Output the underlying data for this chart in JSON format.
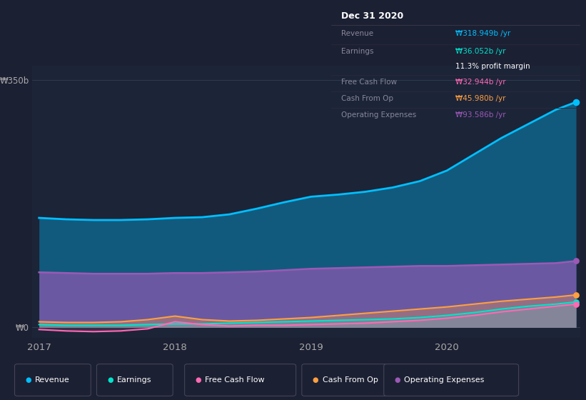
{
  "background_color": "#1c2033",
  "plot_bg_color": "#1c2438",
  "title": "Dec 31 2020",
  "x_years": [
    2017.0,
    2017.2,
    2017.4,
    2017.6,
    2017.8,
    2018.0,
    2018.2,
    2018.4,
    2018.6,
    2018.8,
    2019.0,
    2019.2,
    2019.4,
    2019.6,
    2019.8,
    2020.0,
    2020.2,
    2020.4,
    2020.6,
    2020.8,
    2020.95
  ],
  "revenue": [
    155,
    153,
    152,
    152,
    153,
    155,
    156,
    160,
    168,
    177,
    185,
    188,
    192,
    198,
    207,
    222,
    245,
    268,
    288,
    308,
    319
  ],
  "earnings": [
    4,
    3,
    3,
    3,
    4,
    5,
    5,
    6,
    7,
    8,
    9,
    10,
    11,
    12,
    14,
    17,
    21,
    26,
    30,
    33,
    36
  ],
  "free_cash_flow": [
    -3,
    -5,
    -6,
    -5,
    -2,
    8,
    4,
    2,
    3,
    3,
    4,
    5,
    6,
    8,
    10,
    13,
    17,
    22,
    26,
    30,
    33
  ],
  "cash_from_op": [
    8,
    7,
    7,
    8,
    11,
    16,
    11,
    9,
    10,
    12,
    14,
    17,
    20,
    23,
    26,
    29,
    33,
    37,
    40,
    43,
    46
  ],
  "operating_expenses": [
    78,
    77,
    76,
    76,
    76,
    77,
    77,
    78,
    79,
    81,
    83,
    84,
    85,
    86,
    87,
    87,
    88,
    89,
    90,
    91,
    94
  ],
  "revenue_color": "#00bfff",
  "earnings_color": "#00e5cc",
  "free_cash_flow_color": "#ff69b4",
  "cash_from_op_color": "#ffa040",
  "operating_expenses_color": "#9b59b6",
  "ylim": [
    -15,
    370
  ],
  "y_tick_label": "₩350b",
  "y_tick_val": 350,
  "y0_label": "₩0",
  "info_title": "Dec 31 2020",
  "info_revenue_label": "Revenue",
  "info_revenue_value": "₩318.949b /yr",
  "info_earnings_label": "Earnings",
  "info_earnings_value": "₩36.052b /yr",
  "info_margin": "11.3% profit margin",
  "info_fcf_label": "Free Cash Flow",
  "info_fcf_value": "₩32.944b /yr",
  "info_cashop_label": "Cash From Op",
  "info_cashop_value": "₩45.980b /yr",
  "info_opex_label": "Operating Expenses",
  "info_opex_value": "₩93.586b /yr",
  "legend_items": [
    "Revenue",
    "Earnings",
    "Free Cash Flow",
    "Cash From Op",
    "Operating Expenses"
  ],
  "legend_colors": [
    "#00bfff",
    "#00e5cc",
    "#ff69b4",
    "#ffa040",
    "#9b59b6"
  ]
}
